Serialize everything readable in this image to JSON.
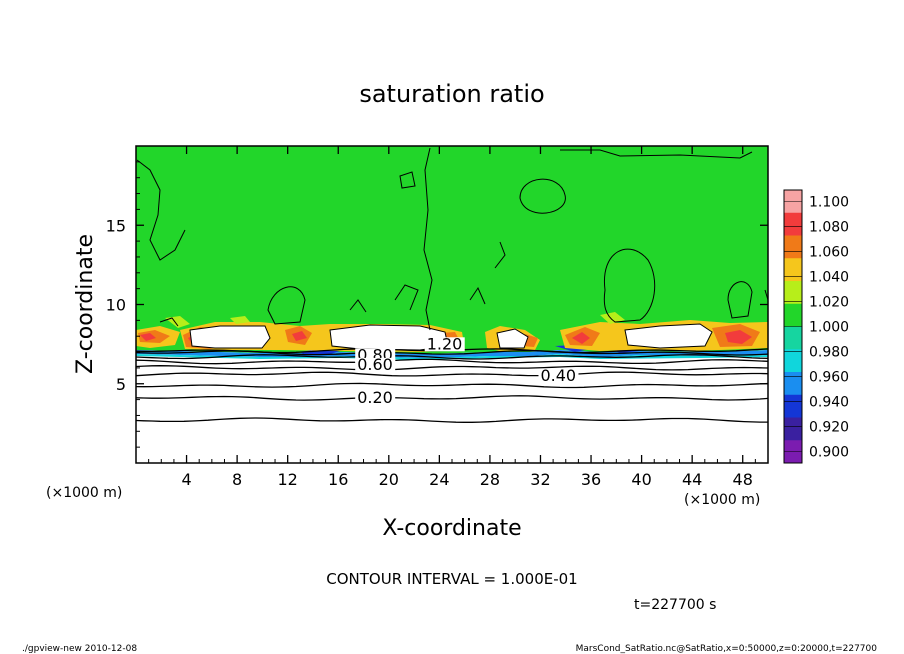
{
  "chart_data": {
    "type": "contour",
    "title": "saturation ratio",
    "xlabel": "X-coordinate",
    "ylabel": "Z-coordinate",
    "x_unit": "(×1000 m)",
    "y_unit": "(×1000 m)",
    "xlim": [
      0,
      50
    ],
    "ylim": [
      0,
      20
    ],
    "x_ticks": [
      4,
      8,
      12,
      16,
      20,
      24,
      28,
      32,
      36,
      40,
      44,
      48
    ],
    "y_ticks": [
      5,
      10,
      15
    ],
    "contour_labels": [
      {
        "text": "1.20",
        "x": 23,
        "z": 7.3
      },
      {
        "text": "0.80",
        "x": 17.5,
        "z": 6.6
      },
      {
        "text": "0.60",
        "x": 17.5,
        "z": 6.0
      },
      {
        "text": "0.40",
        "x": 32,
        "z": 5.3
      },
      {
        "text": "0.20",
        "x": 17.5,
        "z": 3.9
      }
    ],
    "iso_levels": [
      {
        "value": 0.1,
        "z": 2.7
      },
      {
        "value": 0.2,
        "z": 4.1
      },
      {
        "value": 0.3,
        "z": 4.9
      },
      {
        "value": 0.4,
        "z": 5.6
      },
      {
        "value": 0.5,
        "z": 6.0
      },
      {
        "value": 0.6,
        "z": 6.4
      },
      {
        "value": 0.7,
        "z": 6.7
      },
      {
        "value": 0.8,
        "z": 6.95
      },
      {
        "value": 0.9,
        "z": 7.1
      }
    ],
    "colorbar": {
      "levels": [
        "1.100",
        "1.080",
        "1.060",
        "1.040",
        "1.020",
        "1.000",
        "0.980",
        "0.960",
        "0.940",
        "0.920",
        "0.900"
      ],
      "colors": [
        "#f7a3a3",
        "#f23c3c",
        "#f07a18",
        "#f5c61c",
        "#b7ee1a",
        "#22d62a",
        "#16d5a0",
        "#10d6dc",
        "#1a8ef0",
        "#1436d6",
        "#3a20a0",
        "#7b1cb0"
      ]
    },
    "contour_interval_text": "CONTOUR INTERVAL = 1.000E-01",
    "time_text": "t=227700 s"
  },
  "footer": {
    "left": "./gpview-new  2010-12-08",
    "right": "MarsCond_SatRatio.nc@SatRatio,x=0:50000,z=0:20000,t=227700"
  }
}
